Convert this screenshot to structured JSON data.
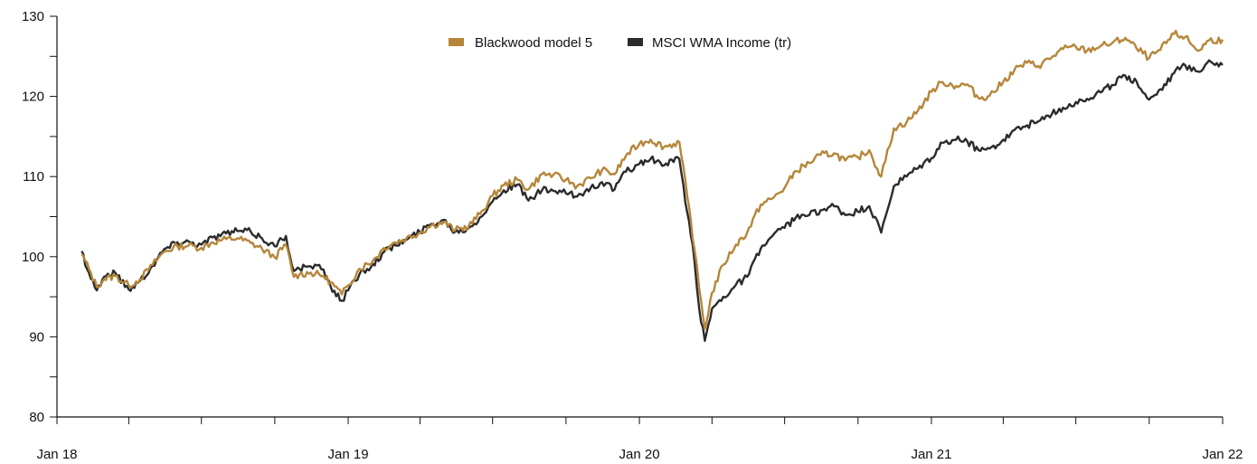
{
  "chart_data": {
    "type": "line",
    "title": "",
    "xlabel": "",
    "ylabel": "",
    "ylim": [
      80,
      130
    ],
    "xlim": [
      "2018-01",
      "2022-01"
    ],
    "yticks": [
      80,
      90,
      100,
      110,
      120,
      130
    ],
    "xtick_labels": [
      "Jan 18",
      "Jan 19",
      "Jan 20",
      "Jan 21",
      "Jan 22"
    ],
    "grid": false,
    "legend_position": "top-center",
    "series": [
      {
        "name": "Blackwood model 5",
        "color": "#b5863a",
        "points": [
          [
            "2018-02-01",
            100.3
          ],
          [
            "2018-02-10",
            98.5
          ],
          [
            "2018-02-20",
            96.2
          ],
          [
            "2018-03-01",
            97.2
          ],
          [
            "2018-03-15",
            97.6
          ],
          [
            "2018-04-01",
            96.4
          ],
          [
            "2018-04-15",
            97.2
          ],
          [
            "2018-05-01",
            99.0
          ],
          [
            "2018-05-15",
            100.6
          ],
          [
            "2018-06-01",
            101.3
          ],
          [
            "2018-06-15",
            101.4
          ],
          [
            "2018-07-01",
            101.1
          ],
          [
            "2018-07-15",
            101.8
          ],
          [
            "2018-08-01",
            102.2
          ],
          [
            "2018-08-15",
            102.3
          ],
          [
            "2018-09-01",
            101.7
          ],
          [
            "2018-09-15",
            101.0
          ],
          [
            "2018-10-01",
            99.9
          ],
          [
            "2018-10-15",
            101.5
          ],
          [
            "2018-10-25",
            97.5
          ],
          [
            "2018-11-01",
            97.8
          ],
          [
            "2018-11-15",
            98.0
          ],
          [
            "2018-12-01",
            97.6
          ],
          [
            "2018-12-10",
            96.8
          ],
          [
            "2018-12-24",
            95.3
          ],
          [
            "2019-01-01",
            96.4
          ],
          [
            "2019-01-15",
            98.5
          ],
          [
            "2019-02-01",
            99.5
          ],
          [
            "2019-02-15",
            101.1
          ],
          [
            "2019-03-01",
            101.8
          ],
          [
            "2019-03-15",
            102.3
          ],
          [
            "2019-04-01",
            103.0
          ],
          [
            "2019-04-15",
            103.9
          ],
          [
            "2019-05-01",
            104.3
          ],
          [
            "2019-05-15",
            103.3
          ],
          [
            "2019-06-01",
            103.8
          ],
          [
            "2019-06-15",
            105.3
          ],
          [
            "2019-07-01",
            107.6
          ],
          [
            "2019-07-15",
            108.9
          ],
          [
            "2019-08-01",
            109.6
          ],
          [
            "2019-08-15",
            108.4
          ],
          [
            "2019-09-01",
            110.3
          ],
          [
            "2019-09-15",
            110.2
          ],
          [
            "2019-10-01",
            109.6
          ],
          [
            "2019-10-15",
            108.8
          ],
          [
            "2019-11-01",
            109.8
          ],
          [
            "2019-11-15",
            110.8
          ],
          [
            "2019-12-01",
            110.3
          ],
          [
            "2019-12-15",
            112.6
          ],
          [
            "2020-01-01",
            114.1
          ],
          [
            "2020-01-15",
            114.6
          ],
          [
            "2020-02-01",
            113.7
          ],
          [
            "2020-02-20",
            114.3
          ],
          [
            "2020-03-01",
            107.5
          ],
          [
            "2020-03-10",
            101.0
          ],
          [
            "2020-03-16",
            96.0
          ],
          [
            "2020-03-23",
            91.0
          ],
          [
            "2020-04-01",
            95.5
          ],
          [
            "2020-04-15",
            99.0
          ],
          [
            "2020-05-01",
            101.5
          ],
          [
            "2020-05-15",
            103.0
          ],
          [
            "2020-06-01",
            106.5
          ],
          [
            "2020-06-15",
            107.2
          ],
          [
            "2020-07-01",
            108.6
          ],
          [
            "2020-07-15",
            110.7
          ],
          [
            "2020-08-01",
            111.7
          ],
          [
            "2020-08-15",
            112.7
          ],
          [
            "2020-09-01",
            112.9
          ],
          [
            "2020-09-15",
            112.0
          ],
          [
            "2020-10-01",
            112.4
          ],
          [
            "2020-10-15",
            113.3
          ],
          [
            "2020-10-30",
            110.0
          ],
          [
            "2020-11-15",
            116.0
          ],
          [
            "2020-12-01",
            116.8
          ],
          [
            "2020-12-15",
            118.2
          ],
          [
            "2021-01-01",
            120.6
          ],
          [
            "2021-01-15",
            121.8
          ],
          [
            "2021-02-01",
            121.3
          ],
          [
            "2021-02-15",
            121.5
          ],
          [
            "2021-03-01",
            119.8
          ],
          [
            "2021-03-15",
            120.1
          ],
          [
            "2021-04-01",
            121.8
          ],
          [
            "2021-04-15",
            123.3
          ],
          [
            "2021-05-01",
            124.2
          ],
          [
            "2021-05-15",
            123.8
          ],
          [
            "2021-06-01",
            124.9
          ],
          [
            "2021-06-15",
            125.9
          ],
          [
            "2021-07-01",
            126.2
          ],
          [
            "2021-07-15",
            125.7
          ],
          [
            "2021-08-01",
            126.3
          ],
          [
            "2021-08-15",
            126.6
          ],
          [
            "2021-09-01",
            127.3
          ],
          [
            "2021-09-15",
            126.0
          ],
          [
            "2021-10-01",
            124.8
          ],
          [
            "2021-10-15",
            125.8
          ],
          [
            "2021-11-01",
            127.8
          ],
          [
            "2021-11-15",
            127.4
          ],
          [
            "2021-12-01",
            125.7
          ],
          [
            "2021-12-15",
            127.0
          ],
          [
            "2022-01-01",
            127.1
          ]
        ]
      },
      {
        "name": "MSCI WMA Income (tr)",
        "color": "#2b2b2b",
        "points": [
          [
            "2018-02-01",
            100.7
          ],
          [
            "2018-02-10",
            98.0
          ],
          [
            "2018-02-20",
            95.8
          ],
          [
            "2018-03-01",
            97.5
          ],
          [
            "2018-03-15",
            98.0
          ],
          [
            "2018-04-01",
            95.9
          ],
          [
            "2018-04-15",
            97.0
          ],
          [
            "2018-05-01",
            98.9
          ],
          [
            "2018-05-15",
            100.9
          ],
          [
            "2018-06-01",
            101.8
          ],
          [
            "2018-06-15",
            101.9
          ],
          [
            "2018-07-01",
            101.5
          ],
          [
            "2018-07-15",
            102.4
          ],
          [
            "2018-08-01",
            102.9
          ],
          [
            "2018-08-15",
            103.2
          ],
          [
            "2018-09-01",
            103.1
          ],
          [
            "2018-09-15",
            102.3
          ],
          [
            "2018-10-01",
            101.3
          ],
          [
            "2018-10-15",
            102.6
          ],
          [
            "2018-10-25",
            98.2
          ],
          [
            "2018-11-01",
            98.5
          ],
          [
            "2018-11-15",
            98.8
          ],
          [
            "2018-12-01",
            98.4
          ],
          [
            "2018-12-10",
            96.3
          ],
          [
            "2018-12-24",
            94.5
          ],
          [
            "2019-01-01",
            95.8
          ],
          [
            "2019-01-15",
            97.8
          ],
          [
            "2019-02-01",
            99.1
          ],
          [
            "2019-02-15",
            100.6
          ],
          [
            "2019-03-01",
            101.4
          ],
          [
            "2019-03-15",
            102.1
          ],
          [
            "2019-04-01",
            103.1
          ],
          [
            "2019-04-15",
            104.1
          ],
          [
            "2019-05-01",
            104.6
          ],
          [
            "2019-05-15",
            103.1
          ],
          [
            "2019-06-01",
            103.6
          ],
          [
            "2019-06-15",
            104.9
          ],
          [
            "2019-07-01",
            106.9
          ],
          [
            "2019-07-15",
            108.3
          ],
          [
            "2019-08-01",
            109.0
          ],
          [
            "2019-08-15",
            107.0
          ],
          [
            "2019-09-01",
            108.3
          ],
          [
            "2019-09-15",
            108.2
          ],
          [
            "2019-10-01",
            107.9
          ],
          [
            "2019-10-15",
            107.5
          ],
          [
            "2019-11-01",
            108.6
          ],
          [
            "2019-11-15",
            109.3
          ],
          [
            "2019-12-01",
            108.4
          ],
          [
            "2019-12-15",
            110.6
          ],
          [
            "2020-01-01",
            111.6
          ],
          [
            "2020-01-15",
            112.2
          ],
          [
            "2020-02-01",
            111.4
          ],
          [
            "2020-02-20",
            112.2
          ],
          [
            "2020-03-01",
            105.5
          ],
          [
            "2020-03-10",
            99.5
          ],
          [
            "2020-03-16",
            93.5
          ],
          [
            "2020-03-23",
            89.5
          ],
          [
            "2020-04-01",
            93.5
          ],
          [
            "2020-04-15",
            95.0
          ],
          [
            "2020-05-01",
            96.5
          ],
          [
            "2020-05-15",
            97.5
          ],
          [
            "2020-06-01",
            101.0
          ],
          [
            "2020-06-15",
            102.5
          ],
          [
            "2020-07-01",
            103.6
          ],
          [
            "2020-07-15",
            104.9
          ],
          [
            "2020-08-01",
            105.2
          ],
          [
            "2020-08-15",
            105.8
          ],
          [
            "2020-09-01",
            106.3
          ],
          [
            "2020-09-15",
            105.2
          ],
          [
            "2020-10-01",
            105.6
          ],
          [
            "2020-10-15",
            106.3
          ],
          [
            "2020-10-30",
            103.0
          ],
          [
            "2020-11-15",
            108.8
          ],
          [
            "2020-12-01",
            110.0
          ],
          [
            "2020-12-15",
            111.0
          ],
          [
            "2021-01-01",
            112.3
          ],
          [
            "2021-01-15",
            114.2
          ],
          [
            "2021-02-01",
            114.6
          ],
          [
            "2021-02-15",
            114.4
          ],
          [
            "2021-03-01",
            113.3
          ],
          [
            "2021-03-15",
            113.5
          ],
          [
            "2021-04-01",
            114.6
          ],
          [
            "2021-04-15",
            115.8
          ],
          [
            "2021-05-01",
            116.4
          ],
          [
            "2021-05-15",
            116.9
          ],
          [
            "2021-06-01",
            117.8
          ],
          [
            "2021-06-15",
            118.6
          ],
          [
            "2021-07-01",
            119.3
          ],
          [
            "2021-07-15",
            119.7
          ],
          [
            "2021-08-01",
            120.5
          ],
          [
            "2021-08-15",
            121.4
          ],
          [
            "2021-09-01",
            122.6
          ],
          [
            "2021-09-15",
            121.9
          ],
          [
            "2021-10-01",
            119.6
          ],
          [
            "2021-10-15",
            120.9
          ],
          [
            "2021-11-01",
            122.9
          ],
          [
            "2021-11-15",
            123.9
          ],
          [
            "2021-12-01",
            123.1
          ],
          [
            "2021-12-15",
            124.5
          ],
          [
            "2022-01-01",
            123.9
          ]
        ]
      }
    ]
  }
}
